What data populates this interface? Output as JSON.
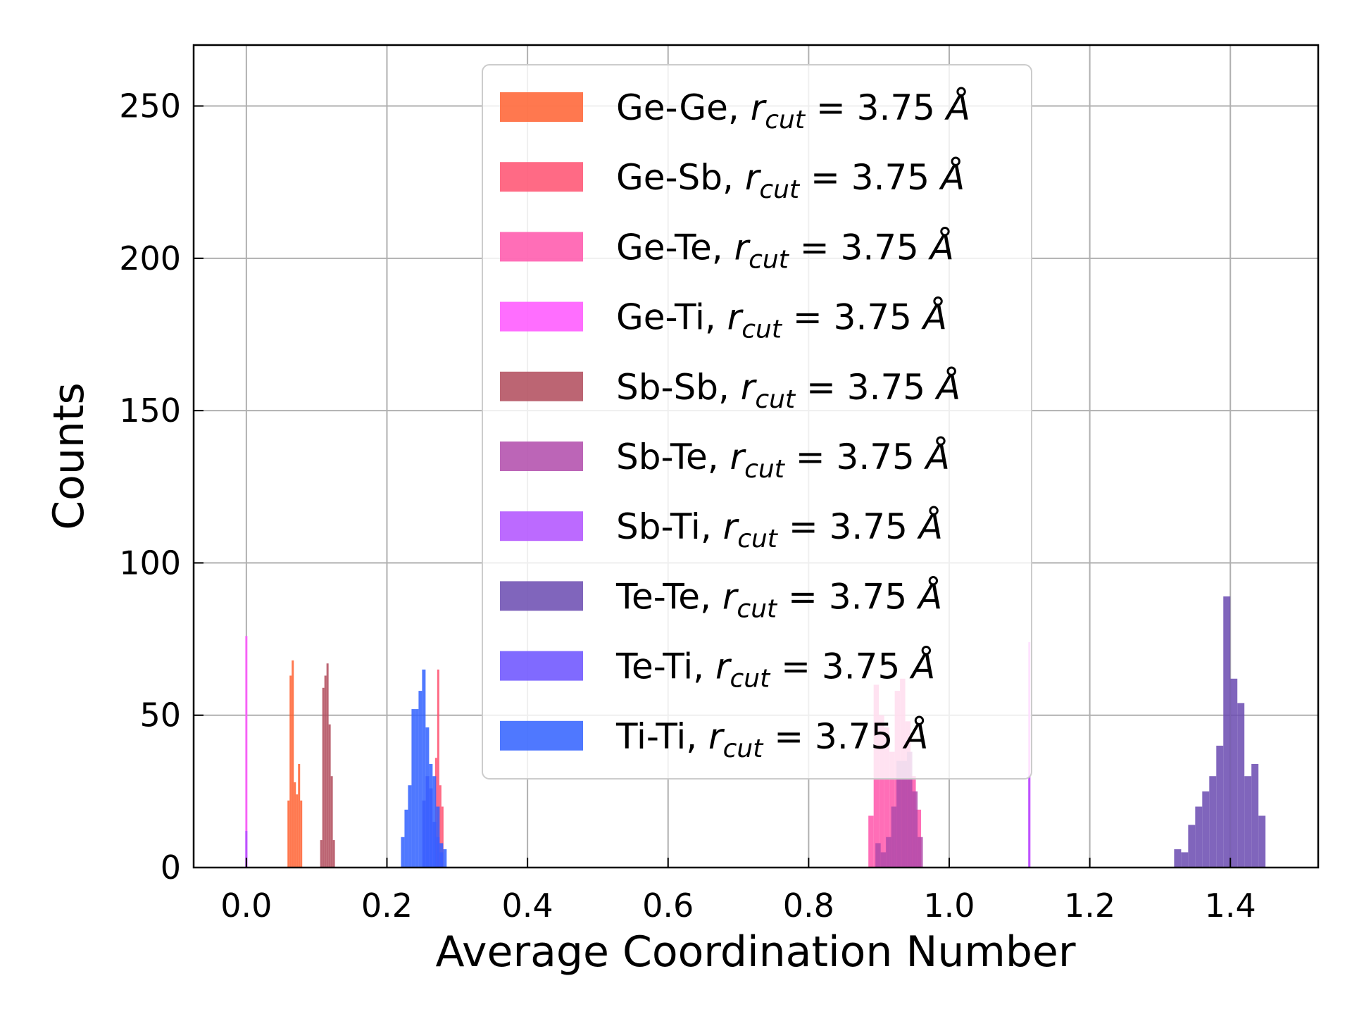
{
  "chart_data": {
    "type": "bar",
    "xlabel": "Average Coordination Number",
    "ylabel": "Counts",
    "xlim": [
      -0.075,
      1.525
    ],
    "ylim": [
      0,
      270
    ],
    "xticks": [
      "0.0",
      "0.2",
      "0.4",
      "0.6",
      "0.8",
      "1.0",
      "1.2",
      "1.4"
    ],
    "yticks": [
      "0",
      "50",
      "100",
      "150",
      "200",
      "250"
    ],
    "grid": true,
    "legend_position": "top-center",
    "legend_suffix": ", r_cut = 3.75 Å",
    "series": [
      {
        "name": "Ge-Ge",
        "color": "#ff6030",
        "bins": [
          [
            0.0585,
            0.0615,
            22
          ],
          [
            0.0615,
            0.0645,
            63
          ],
          [
            0.0645,
            0.0675,
            68
          ],
          [
            0.0675,
            0.0705,
            28
          ],
          [
            0.0705,
            0.0735,
            24
          ],
          [
            0.0735,
            0.0765,
            34
          ],
          [
            0.0765,
            0.0795,
            22
          ]
        ]
      },
      {
        "name": "Ge-Sb",
        "color": "#ff5070",
        "bins": [
          [
            0.2685,
            0.2715,
            36
          ],
          [
            0.2715,
            0.2745,
            65
          ],
          [
            0.2745,
            0.2775,
            27
          ],
          [
            0.2775,
            0.2805,
            20
          ]
        ]
      },
      {
        "name": "Ge-Te",
        "color": "#ff55aa",
        "bins": [
          [
            0.885,
            0.8925,
            17
          ],
          [
            0.8925,
            0.9,
            60
          ],
          [
            0.9,
            0.9075,
            50
          ],
          [
            0.9075,
            0.915,
            46
          ],
          [
            0.915,
            0.9225,
            38
          ],
          [
            0.9225,
            0.93,
            58
          ],
          [
            0.93,
            0.9375,
            62
          ],
          [
            0.9375,
            0.945,
            48
          ],
          [
            0.945,
            0.9525,
            30
          ],
          [
            0.9525,
            0.96,
            19
          ]
        ]
      },
      {
        "name": "Ge-Ti",
        "color": "#ff55ff",
        "bins": [
          [
            -0.0015,
            0.0015,
            76
          ],
          [
            1.1125,
            1.1155,
            74
          ]
        ]
      },
      {
        "name": "Sb-Sb",
        "color": "#b04a5a",
        "bins": [
          [
            0.105,
            0.108,
            9
          ],
          [
            0.108,
            0.111,
            59
          ],
          [
            0.111,
            0.114,
            63
          ],
          [
            0.114,
            0.117,
            67
          ],
          [
            0.117,
            0.12,
            47
          ],
          [
            0.12,
            0.123,
            30
          ],
          [
            0.123,
            0.126,
            9
          ]
        ]
      },
      {
        "name": "Sb-Te",
        "color": "#b04aaa",
        "bins": [
          [
            0.895,
            0.9025,
            8
          ],
          [
            0.9025,
            0.91,
            5
          ],
          [
            0.91,
            0.9175,
            10
          ],
          [
            0.9175,
            0.925,
            20
          ],
          [
            0.925,
            0.9325,
            35
          ],
          [
            0.9325,
            0.94,
            35
          ],
          [
            0.94,
            0.9475,
            38
          ],
          [
            0.9475,
            0.955,
            25
          ],
          [
            0.955,
            0.9625,
            10
          ]
        ]
      },
      {
        "name": "Sb-Ti",
        "color": "#b050ff",
        "bins": [
          [
            -0.0015,
            0.0015,
            12
          ],
          [
            1.1125,
            1.1155,
            30
          ]
        ]
      },
      {
        "name": "Te-Te",
        "color": "#6a4ab0",
        "bins": [
          [
            1.32,
            1.33,
            6
          ],
          [
            1.33,
            1.34,
            5
          ],
          [
            1.34,
            1.35,
            14
          ],
          [
            1.35,
            1.36,
            20
          ],
          [
            1.36,
            1.37,
            25
          ],
          [
            1.37,
            1.38,
            30
          ],
          [
            1.38,
            1.39,
            40
          ],
          [
            1.39,
            1.4,
            89
          ],
          [
            1.4,
            1.41,
            62
          ],
          [
            1.41,
            1.42,
            54
          ],
          [
            1.42,
            1.43,
            30
          ],
          [
            1.43,
            1.44,
            34
          ],
          [
            1.44,
            1.45,
            17
          ]
        ]
      },
      {
        "name": "Te-Ti",
        "color": "#6a50ff",
        "bins": [
          [
            0.25,
            0.255,
            22
          ],
          [
            0.255,
            0.26,
            30
          ],
          [
            0.26,
            0.265,
            26
          ],
          [
            0.265,
            0.27,
            15
          ],
          [
            0.27,
            0.275,
            10
          ],
          [
            0.275,
            0.28,
            5
          ]
        ]
      },
      {
        "name": "Ti-Ti",
        "color": "#3060ff",
        "bins": [
          [
            0.22,
            0.225,
            10
          ],
          [
            0.225,
            0.23,
            19
          ],
          [
            0.23,
            0.235,
            27
          ],
          [
            0.235,
            0.24,
            52
          ],
          [
            0.24,
            0.245,
            52
          ],
          [
            0.245,
            0.25,
            58
          ],
          [
            0.25,
            0.255,
            65
          ],
          [
            0.255,
            0.26,
            46
          ],
          [
            0.26,
            0.265,
            34
          ],
          [
            0.265,
            0.27,
            30
          ],
          [
            0.27,
            0.275,
            20
          ],
          [
            0.275,
            0.28,
            8
          ],
          [
            0.28,
            0.285,
            6
          ]
        ]
      }
    ]
  }
}
